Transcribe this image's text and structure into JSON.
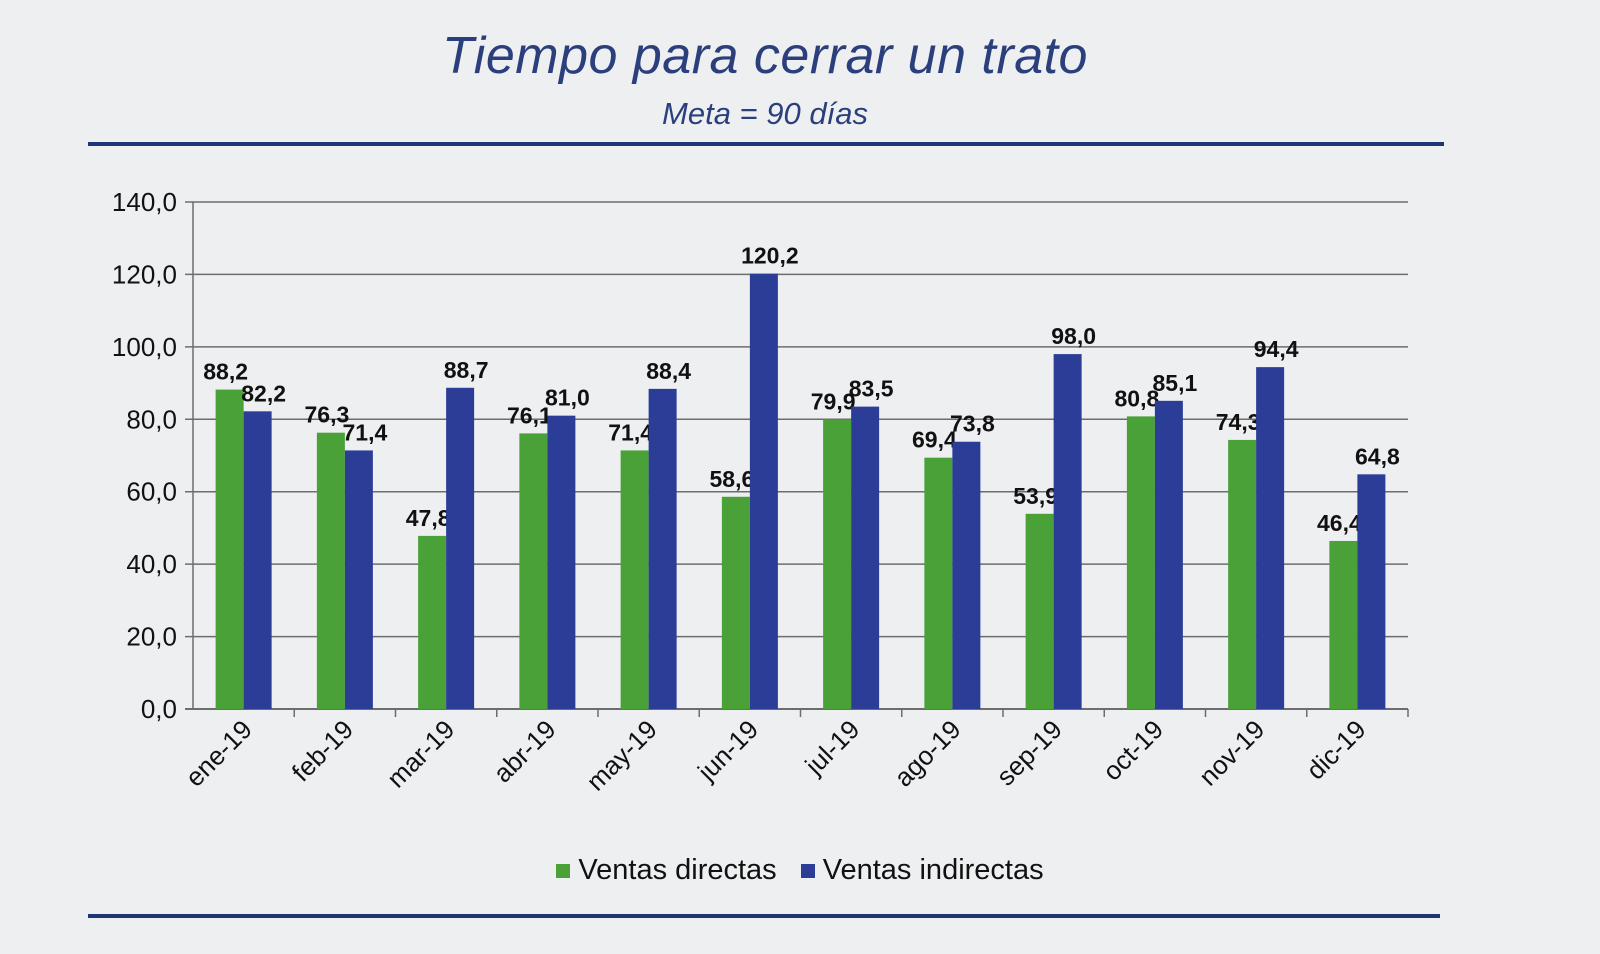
{
  "chart_data": {
    "type": "bar",
    "title": "Tiempo para cerrar un trato",
    "subtitle": "Meta = 90 días",
    "categories": [
      "ene-19",
      "feb-19",
      "mar-19",
      "abr-19",
      "may-19",
      "jun-19",
      "jul-19",
      "ago-19",
      "sep-19",
      "oct-19",
      "nov-19",
      "dic-19"
    ],
    "series": [
      {
        "name": "Ventas directas",
        "color": "#4aa137",
        "values": [
          88.2,
          76.3,
          47.8,
          76.1,
          71.4,
          58.6,
          79.9,
          69.4,
          53.9,
          80.8,
          74.3,
          46.4
        ],
        "labels": [
          "88,2",
          "76,3",
          "47,8",
          "76,1",
          "71,4",
          "58,6",
          "79,9",
          "69,4",
          "53,9",
          "80,8",
          "74,3",
          "46,4"
        ]
      },
      {
        "name": "Ventas indirectas",
        "color": "#2b3d96",
        "values": [
          82.2,
          71.4,
          88.7,
          81.0,
          88.4,
          120.2,
          83.5,
          73.8,
          98.0,
          85.1,
          94.4,
          64.8
        ],
        "labels": [
          "82,2",
          "71,4",
          "88,7",
          "81,0",
          "88,4",
          "120,2",
          "83,5",
          "73,8",
          "98,0",
          "85,1",
          "94,4",
          "64,8"
        ]
      }
    ],
    "ylim": [
      0,
      140
    ],
    "yticks": [
      0,
      20,
      40,
      60,
      80,
      100,
      120,
      140
    ],
    "yticklabels": [
      "0,0",
      "20,0",
      "40,0",
      "60,0",
      "80,0",
      "100,0",
      "120,0",
      "140,0"
    ],
    "grid": true,
    "legend": "bottom",
    "xlabel": "",
    "ylabel": ""
  }
}
